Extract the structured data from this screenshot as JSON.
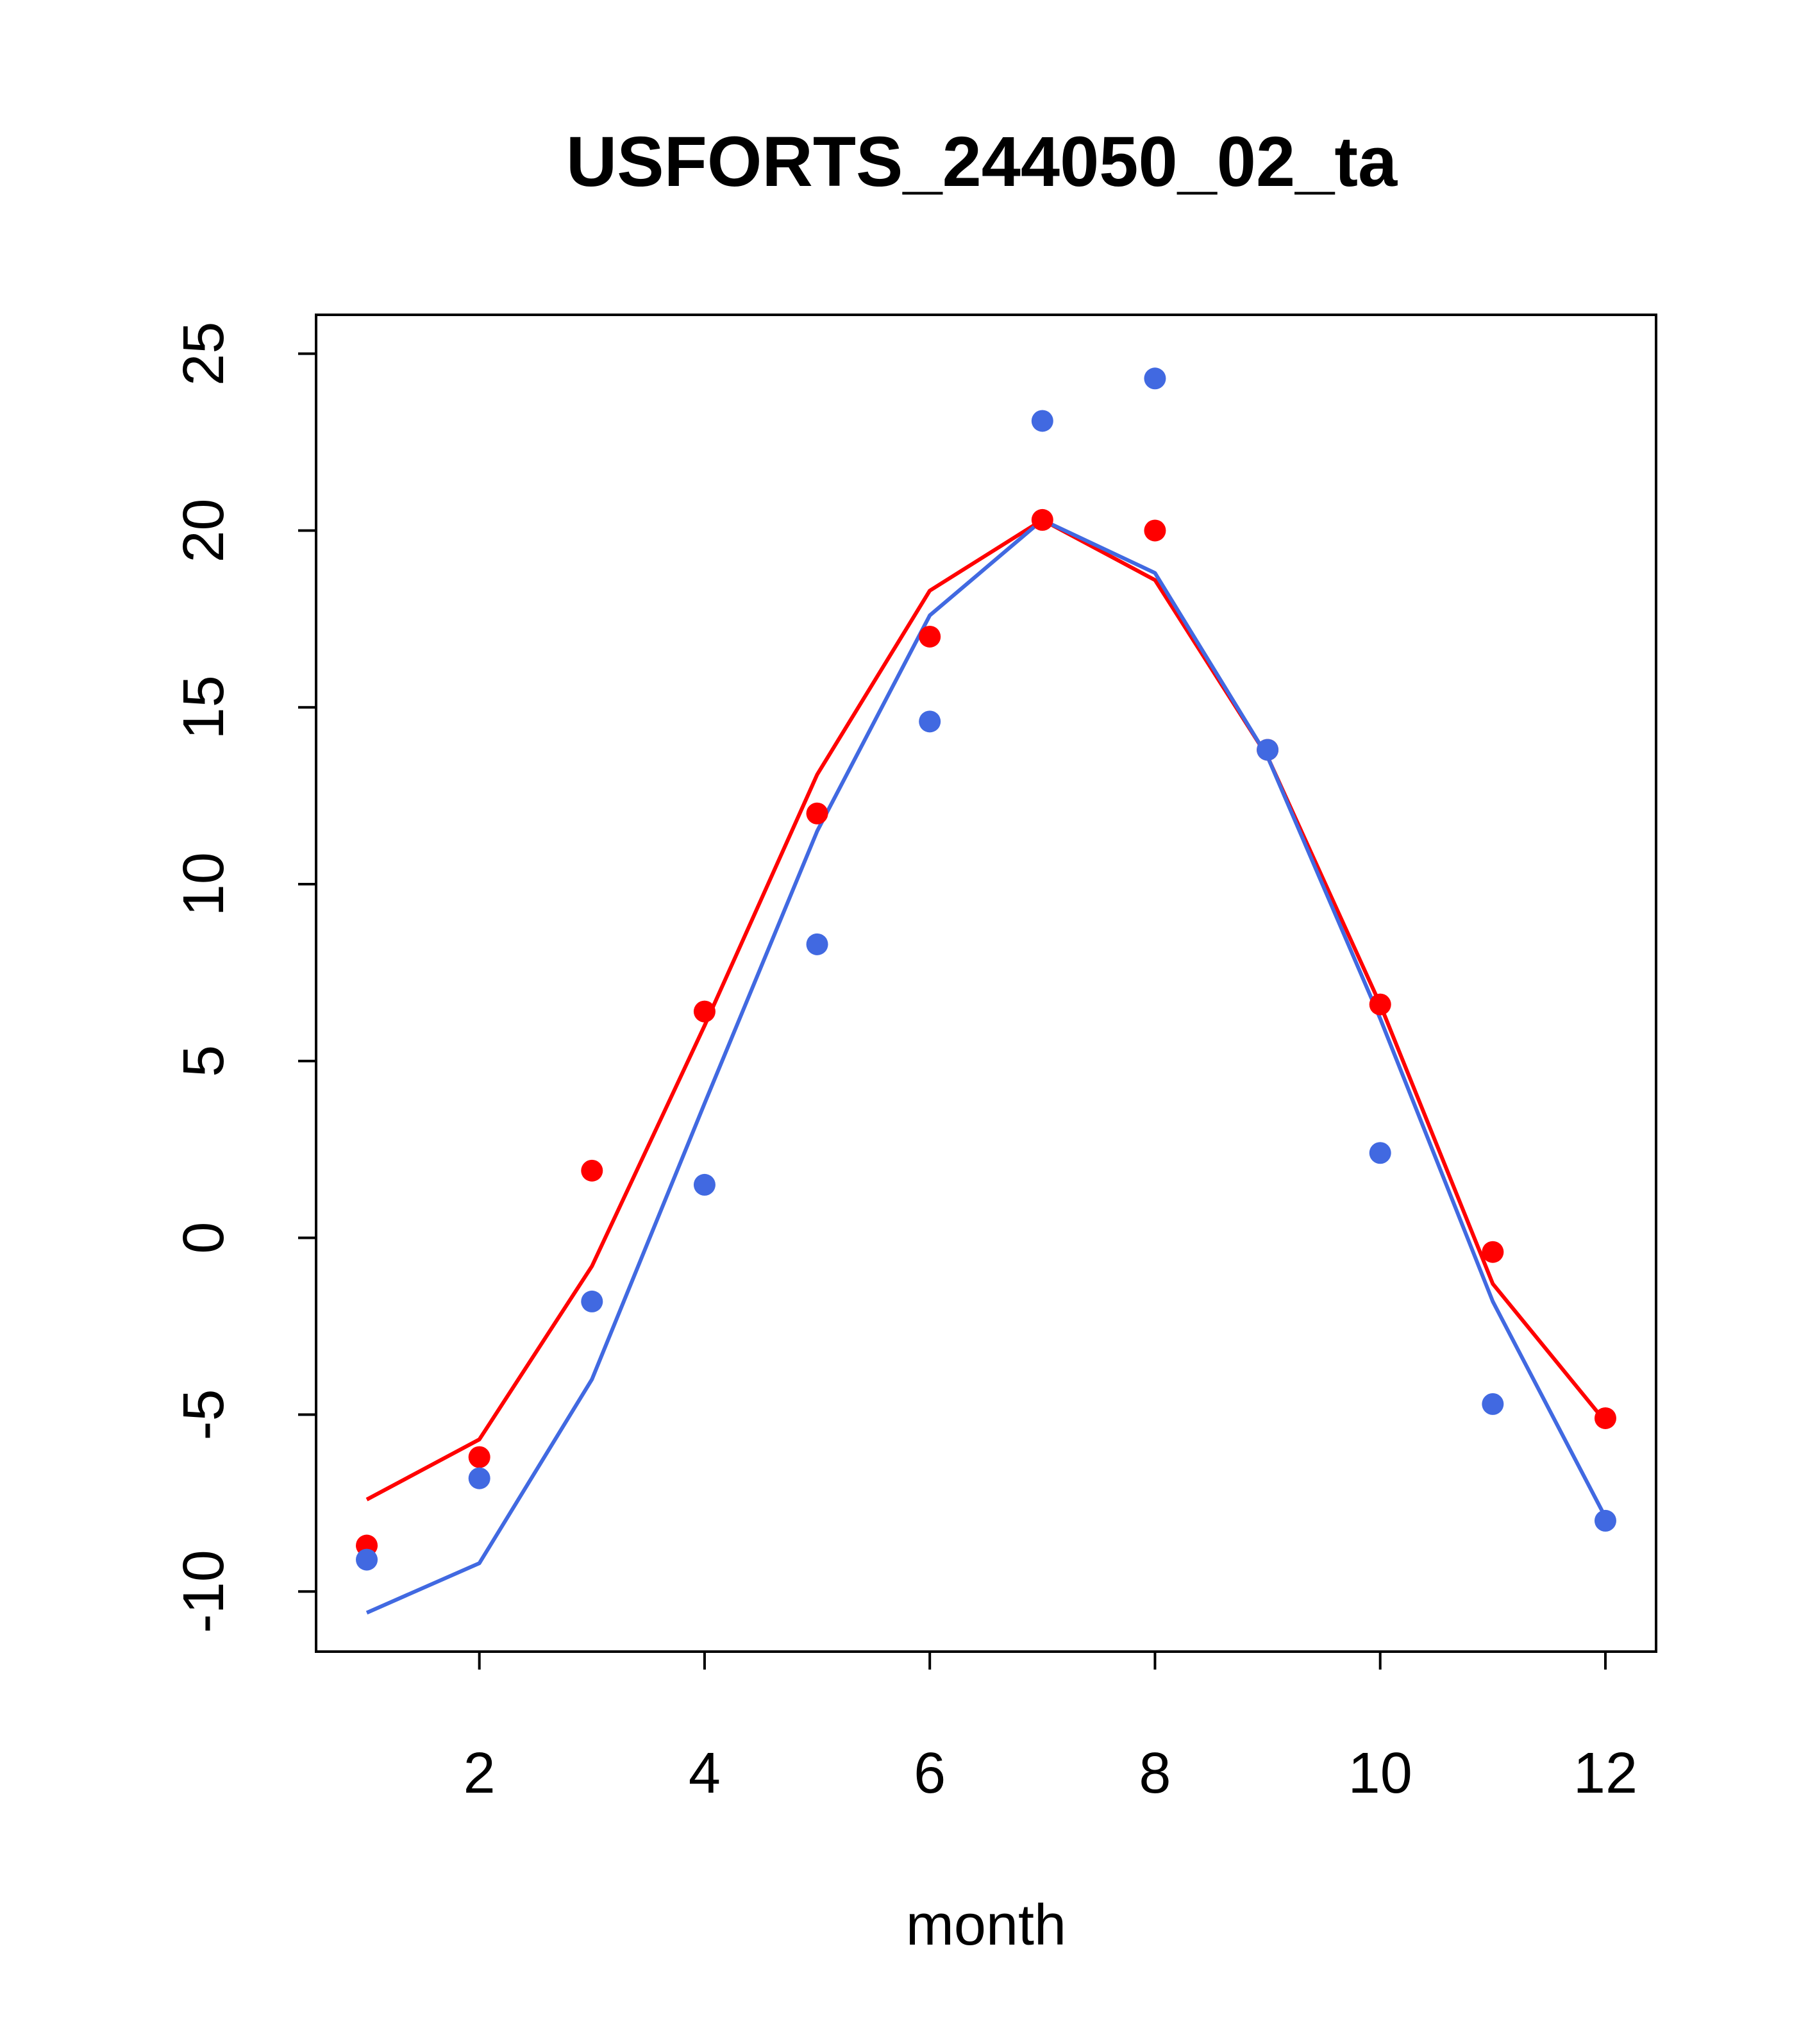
{
  "chart_data": {
    "type": "line",
    "title": "USFORTS_244050_02_ta",
    "xlabel": "month",
    "ylabel": "",
    "xlim": [
      0.55,
      12.45
    ],
    "ylim": [
      -11.7,
      26.1
    ],
    "xticks": [
      2,
      4,
      6,
      8,
      10,
      12
    ],
    "yticks": [
      -10,
      -5,
      0,
      5,
      10,
      15,
      20,
      25
    ],
    "xtick_labels": [
      "2",
      "4",
      "6",
      "8",
      "10",
      "12"
    ],
    "ytick_labels": [
      "-10",
      "-5",
      "0",
      "5",
      "10",
      "15",
      "20",
      "25"
    ],
    "grid": false,
    "legend": "none",
    "x": [
      1,
      2,
      3,
      4,
      5,
      6,
      7,
      8,
      9,
      10,
      11,
      12
    ],
    "series": [
      {
        "color": "#ff0000",
        "kind": "line",
        "values": [
          -7.4,
          -5.7,
          -0.8,
          6.0,
          13.1,
          18.3,
          20.3,
          18.6,
          13.6,
          6.6,
          -1.3,
          -5.2
        ]
      },
      {
        "color": "#ff0000",
        "kind": "points",
        "values": [
          -8.7,
          -6.2,
          1.9,
          6.4,
          12.0,
          17.0,
          20.3,
          20.0,
          13.8,
          6.6,
          -0.4,
          -5.1
        ]
      },
      {
        "color": "#4169e1",
        "kind": "line",
        "values": [
          -10.6,
          -9.2,
          -4.0,
          3.8,
          11.5,
          17.6,
          20.3,
          18.8,
          13.6,
          6.2,
          -1.8,
          -7.9
        ]
      },
      {
        "color": "#4169e1",
        "kind": "points",
        "values": [
          -9.1,
          -6.8,
          -1.8,
          1.5,
          8.3,
          14.6,
          23.1,
          24.3,
          13.8,
          2.4,
          -4.7,
          -8.0
        ]
      }
    ]
  }
}
